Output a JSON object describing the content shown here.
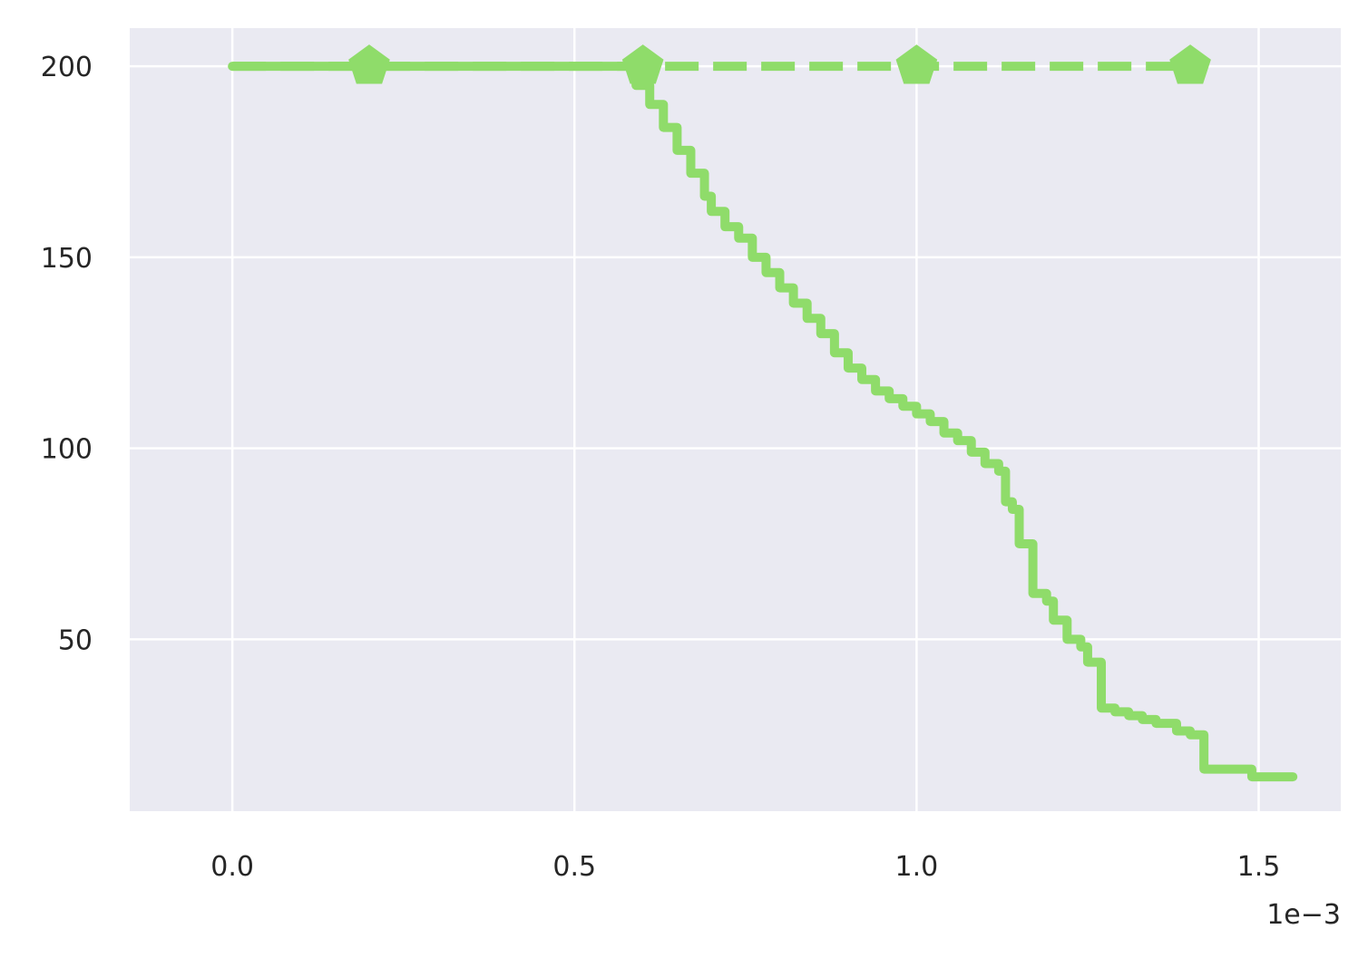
{
  "chart_data": {
    "type": "line",
    "title": "",
    "xlabel": "",
    "ylabel": "",
    "x_offset_label": "1e−3",
    "x_scale_factor": 0.001,
    "xlim": [
      -0.00015,
      0.00162
    ],
    "ylim": [
      5,
      210
    ],
    "x_ticks": [
      {
        "value": 0.0,
        "label": "0.0"
      },
      {
        "value": 0.0005,
        "label": "0.5"
      },
      {
        "value": 0.001,
        "label": "1.0"
      },
      {
        "value": 0.0015,
        "label": "1.5"
      }
    ],
    "y_ticks": [
      {
        "value": 50,
        "label": "50"
      },
      {
        "value": 100,
        "label": "100"
      },
      {
        "value": 150,
        "label": "150"
      },
      {
        "value": 200,
        "label": "200"
      }
    ],
    "grid": true,
    "background_color": "#eaeaf2",
    "grid_color": "#ffffff",
    "series": [
      {
        "style": "solid",
        "step": true,
        "color": "#8fdc6a",
        "x": [
          0.0,
          0.000575,
          0.00059,
          0.00061,
          0.00063,
          0.00065,
          0.00067,
          0.00069,
          0.0007,
          0.00072,
          0.00074,
          0.00076,
          0.00078,
          0.0008,
          0.00082,
          0.00084,
          0.00086,
          0.00088,
          0.0009,
          0.00092,
          0.00094,
          0.00096,
          0.00098,
          0.001,
          0.00102,
          0.00104,
          0.00106,
          0.00108,
          0.0011,
          0.00112,
          0.00113,
          0.00114,
          0.00115,
          0.00117,
          0.00119,
          0.0012,
          0.00122,
          0.00124,
          0.00125,
          0.00127,
          0.00129,
          0.00131,
          0.00133,
          0.00135,
          0.00138,
          0.0014,
          0.00142,
          0.00144,
          0.00146,
          0.00149,
          0.00155
        ],
        "y": [
          200,
          200,
          195,
          190,
          184,
          178,
          172,
          166,
          162,
          158,
          155,
          150,
          146,
          142,
          138,
          134,
          130,
          125,
          121,
          118,
          115,
          113,
          111,
          109,
          107,
          104,
          102,
          99,
          96,
          94,
          86,
          84,
          75,
          62,
          60,
          55,
          50,
          48,
          44,
          32,
          31,
          30,
          29,
          28,
          26,
          25,
          16,
          16,
          16,
          14,
          14
        ]
      },
      {
        "style": "dashed",
        "step": false,
        "color": "#8fdc6a",
        "marker": "pentagon",
        "x": [
          0.0,
          0.0002,
          0.0006,
          0.001,
          0.0014
        ],
        "y": [
          200,
          200,
          200,
          200,
          200
        ],
        "marker_x": [
          0.0002,
          0.0006,
          0.001,
          0.0014
        ],
        "marker_y": [
          200,
          200,
          200,
          200
        ]
      }
    ]
  }
}
